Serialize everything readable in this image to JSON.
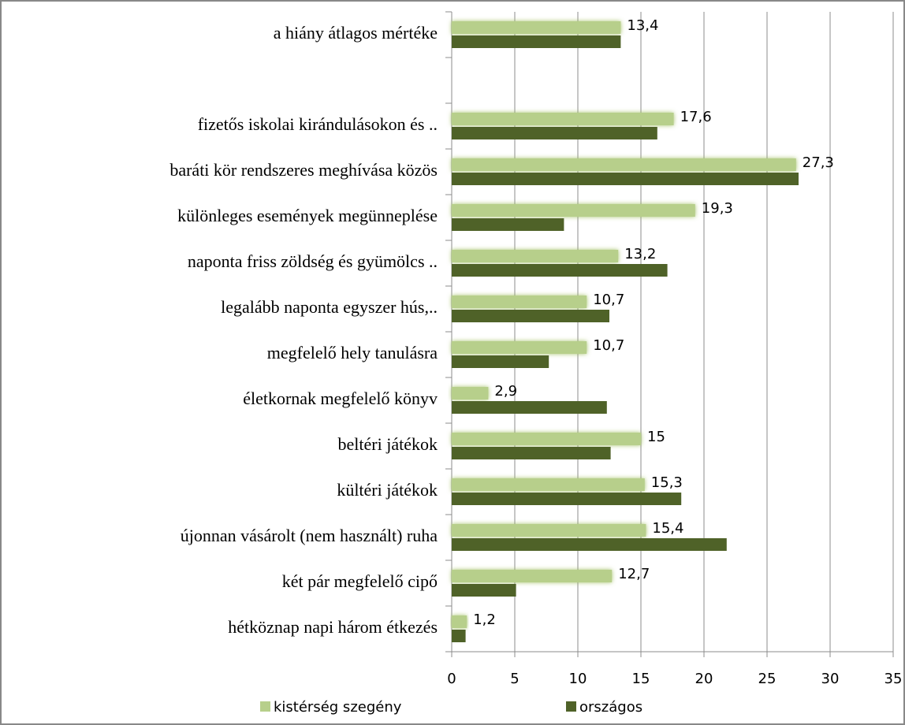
{
  "chart_data": {
    "type": "hbar",
    "categories": [
      "a hiány átlagos mértéke",
      null,
      "fizetős iskolai kirándulásokon és ..",
      "baráti kör rendszeres meghívása közös",
      "különleges események megünneplése",
      "naponta friss zöldség és gyümölcs ..",
      "legalább naponta egyszer hús,..",
      "megfelelő hely tanulásra",
      "életkornak megfelelő  könyv",
      "beltéri játékok",
      "kültéri játékok",
      "újonnan vásárolt (nem használt) ruha",
      "két pár megfelelő  cipő",
      "hétköznap napi három étkezés"
    ],
    "series": [
      {
        "name": "kistérség szegény",
        "color": "#b7cf8b",
        "values": [
          13.4,
          null,
          17.6,
          27.3,
          19.3,
          13.2,
          10.7,
          10.7,
          2.9,
          15,
          15.3,
          15.4,
          12.7,
          1.2
        ],
        "value_labels": [
          "13,4",
          null,
          "17,6",
          "27,3",
          "19,3",
          "13,2",
          "10,7",
          "10,7",
          "2,9",
          "15",
          "15,3",
          "15,4",
          "12,7",
          "1,2"
        ]
      },
      {
        "name": "országos",
        "color": "#4f6228",
        "values": [
          13.4,
          null,
          16.3,
          27.5,
          8.9,
          17.1,
          12.5,
          7.7,
          12.3,
          12.6,
          18.2,
          21.8,
          5.1,
          1.1
        ]
      }
    ],
    "xlim": [
      0,
      35
    ],
    "xticks": [
      0,
      5,
      10,
      15,
      20,
      25,
      30,
      35
    ],
    "grid": true,
    "legend": "bottom"
  }
}
